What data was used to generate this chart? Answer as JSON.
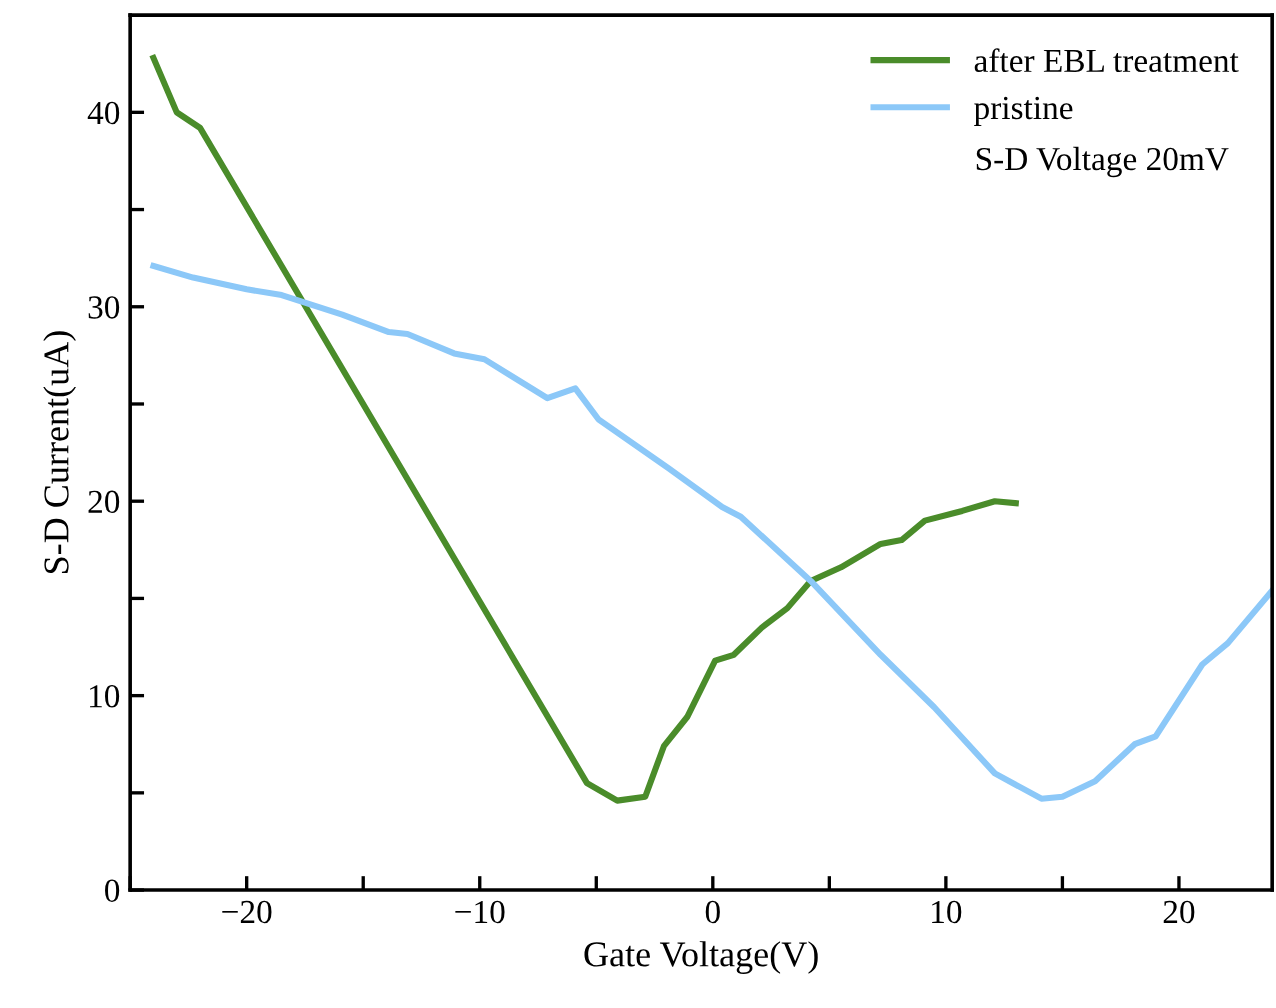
{
  "chart_data": {
    "type": "line",
    "xlabel": "Gate Voltage(V)",
    "ylabel": "S-D Current(uA)",
    "xlim": [
      -25,
      24
    ],
    "ylim": [
      0,
      45
    ],
    "xticks": [
      {
        "value": -25,
        "label": null
      },
      -20,
      {
        "value": -15,
        "label": null
      },
      -10,
      {
        "value": -5,
        "label": null
      },
      0,
      {
        "value": 5,
        "label": null
      },
      10,
      {
        "value": 15,
        "label": null
      },
      20
    ],
    "yticks": [
      0,
      {
        "value": 5,
        "label": null
      },
      10,
      {
        "value": 15,
        "label": null
      },
      20,
      {
        "value": 25,
        "label": null
      },
      30,
      {
        "value": 35,
        "label": null
      },
      40
    ],
    "grid": false,
    "legend": "top right",
    "marker": "none",
    "line_style": "solid",
    "annotations": [
      "S-D Voltage 20mV"
    ],
    "series": [
      {
        "name": "after EBL treatment",
        "color": "#4a8c2a",
        "x": [
          -24.0,
          -23.0,
          -22.0,
          -5.4,
          -4.1,
          -2.9,
          -2.1,
          -1.1,
          0.1,
          0.9,
          2.1,
          3.2,
          4.2,
          5.5,
          7.2,
          8.1,
          9.1,
          10.7,
          12.1,
          13.0
        ],
        "values": [
          42.8,
          40.0,
          39.2,
          5.5,
          4.6,
          4.8,
          7.4,
          8.9,
          11.8,
          12.1,
          13.5,
          14.5,
          15.9,
          16.6,
          17.8,
          18.0,
          19.0,
          19.5,
          20.0,
          19.9
        ]
      },
      {
        "name": "pristine",
        "color": "#8cc8f8",
        "x": [
          -24.0,
          -22.3,
          -20.0,
          -18.5,
          -15.9,
          -13.9,
          -13.1,
          -11.1,
          -9.8,
          -7.1,
          -5.9,
          -4.9,
          -1.9,
          0.4,
          1.2,
          4.2,
          7.2,
          9.5,
          12.1,
          14.1,
          15.0,
          16.4,
          18.1,
          19.0,
          21.0,
          22.1,
          24.0
        ],
        "values": [
          32.1,
          31.5,
          30.9,
          30.6,
          29.6,
          28.7,
          28.6,
          27.6,
          27.3,
          25.3,
          25.8,
          24.2,
          21.7,
          19.7,
          19.2,
          15.9,
          12.1,
          9.4,
          6.0,
          4.7,
          4.8,
          5.6,
          7.5,
          7.9,
          11.6,
          12.7,
          15.4
        ]
      }
    ]
  }
}
